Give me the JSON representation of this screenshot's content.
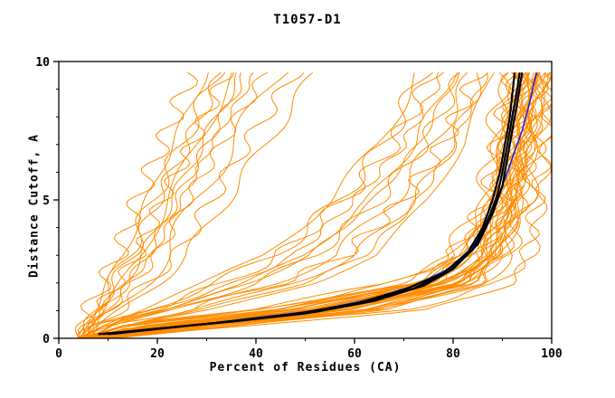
{
  "chart_data": {
    "type": "line",
    "title": "T1057-D1",
    "xlabel": "Percent of Residues (CA)",
    "ylabel": "Distance Cutoff, A",
    "xlim": [
      0,
      100
    ],
    "ylim": [
      0,
      10
    ],
    "xticks": [
      0,
      20,
      40,
      60,
      80,
      100
    ],
    "xminor": [
      10,
      30,
      50,
      70,
      90
    ],
    "yticks": [
      0,
      5,
      10
    ],
    "yminor": [
      1,
      2,
      3,
      4,
      6,
      7,
      8,
      9
    ],
    "grid": false,
    "legend": "none",
    "colors": {
      "ensemble": "#ff8c00",
      "best": "#000000",
      "reference": "#2020cc"
    },
    "y_knots": [
      0,
      0.5,
      1,
      2,
      3,
      5,
      7,
      9.6
    ],
    "orange_curves": [
      [
        5,
        18,
        45,
        74,
        82,
        88,
        90,
        92
      ],
      [
        6,
        22,
        50,
        78,
        85,
        90,
        92,
        94
      ],
      [
        4,
        15,
        40,
        70,
        80,
        87,
        89,
        91
      ],
      [
        7,
        25,
        55,
        80,
        86,
        91,
        93,
        95
      ],
      [
        5,
        20,
        48,
        76,
        84,
        89,
        91,
        93
      ],
      [
        8,
        28,
        58,
        82,
        88,
        92,
        94,
        96
      ],
      [
        6,
        17,
        42,
        72,
        81,
        88,
        90,
        92
      ],
      [
        5,
        23,
        52,
        79,
        86,
        90,
        92,
        95
      ],
      [
        7,
        30,
        60,
        83,
        89,
        93,
        95,
        97
      ],
      [
        4,
        13,
        38,
        68,
        79,
        86,
        88,
        90
      ],
      [
        6,
        26,
        56,
        81,
        87,
        91,
        93,
        96
      ],
      [
        9,
        32,
        62,
        84,
        90,
        94,
        96,
        98
      ],
      [
        5,
        19,
        46,
        75,
        83,
        89,
        91,
        94
      ],
      [
        7,
        24,
        53,
        79,
        86,
        91,
        93,
        95
      ],
      [
        6,
        21,
        49,
        77,
        85,
        90,
        92,
        94
      ],
      [
        8,
        29,
        59,
        83,
        88,
        92,
        94,
        97
      ],
      [
        5,
        16,
        43,
        73,
        82,
        88,
        90,
        93
      ],
      [
        6,
        27,
        57,
        82,
        87,
        92,
        94,
        96
      ],
      [
        10,
        35,
        65,
        85,
        90,
        94,
        96,
        98
      ],
      [
        4,
        14,
        39,
        69,
        80,
        87,
        89,
        92
      ],
      [
        7,
        31,
        61,
        84,
        89,
        93,
        95,
        97
      ],
      [
        5,
        22,
        51,
        78,
        85,
        90,
        93,
        95
      ],
      [
        8,
        33,
        63,
        85,
        90,
        94,
        96,
        98
      ],
      [
        6,
        18,
        44,
        74,
        83,
        89,
        91,
        93
      ],
      [
        9,
        34,
        64,
        86,
        91,
        95,
        97,
        99
      ],
      [
        5,
        20,
        47,
        76,
        84,
        90,
        92,
        94
      ],
      [
        7,
        28,
        58,
        82,
        88,
        93,
        95,
        97
      ],
      [
        6,
        25,
        54,
        80,
        87,
        92,
        94,
        96
      ],
      [
        8,
        30,
        60,
        83,
        89,
        93,
        95,
        98
      ],
      [
        11,
        38,
        68,
        86,
        91,
        95,
        97,
        99
      ],
      [
        6,
        24,
        55,
        81,
        88,
        93,
        96,
        100
      ],
      [
        5,
        21,
        50,
        78,
        86,
        92,
        95,
        99
      ],
      [
        8,
        40,
        75,
        92,
        96,
        98,
        99,
        100
      ],
      [
        7,
        35,
        70,
        90,
        95,
        97,
        99,
        100
      ],
      [
        5,
        12,
        25,
        45,
        58,
        70,
        78,
        85
      ],
      [
        6,
        15,
        30,
        52,
        64,
        75,
        82,
        88
      ],
      [
        4,
        10,
        20,
        38,
        50,
        63,
        72,
        80
      ],
      [
        5,
        13,
        27,
        48,
        60,
        72,
        80,
        86
      ],
      [
        6,
        11,
        22,
        40,
        52,
        65,
        74,
        82
      ],
      [
        4,
        9,
        18,
        34,
        45,
        58,
        68,
        76
      ],
      [
        5,
        14,
        28,
        50,
        62,
        73,
        80,
        87
      ],
      [
        6,
        10,
        19,
        36,
        48,
        60,
        70,
        78
      ],
      [
        4,
        8,
        16,
        30,
        42,
        55,
        65,
        73
      ],
      [
        5,
        12,
        24,
        44,
        56,
        68,
        76,
        84
      ],
      [
        6,
        9,
        17,
        32,
        44,
        57,
        66,
        74
      ],
      [
        4,
        11,
        21,
        39,
        51,
        64,
        73,
        81
      ],
      [
        4,
        6,
        9,
        14,
        18,
        24,
        30,
        38
      ],
      [
        5,
        7,
        10,
        15,
        20,
        26,
        33,
        42
      ],
      [
        4,
        6,
        8,
        12,
        16,
        21,
        27,
        34
      ],
      [
        5,
        8,
        11,
        17,
        22,
        28,
        35,
        45
      ],
      [
        4,
        5,
        7,
        10,
        13,
        18,
        23,
        30
      ],
      [
        5,
        7,
        9,
        13,
        17,
        23,
        29,
        37
      ],
      [
        4,
        6,
        8,
        11,
        15,
        20,
        26,
        33
      ],
      [
        6,
        8,
        12,
        18,
        24,
        31,
        38,
        48
      ],
      [
        4,
        5,
        6,
        9,
        12,
        16,
        21,
        27
      ],
      [
        5,
        7,
        10,
        14,
        19,
        25,
        31,
        40
      ],
      [
        4,
        6,
        9,
        13,
        17,
        22,
        28,
        36
      ],
      [
        6,
        9,
        13,
        20,
        26,
        34,
        42,
        52
      ],
      [
        4,
        5,
        7,
        11,
        14,
        19,
        25,
        32
      ]
    ],
    "black_curves": [
      [
        [
          9,
          0.15
        ],
        [
          20,
          0.35
        ],
        [
          35,
          0.6
        ],
        [
          50,
          0.9
        ],
        [
          62,
          1.3
        ],
        [
          72,
          1.8
        ],
        [
          79,
          2.4
        ],
        [
          84,
          3.2
        ],
        [
          87,
          4.2
        ],
        [
          89,
          5.2
        ],
        [
          90,
          6.0
        ],
        [
          91,
          7.0
        ],
        [
          92,
          8.0
        ],
        [
          93,
          9.0
        ],
        [
          93.5,
          9.6
        ]
      ],
      [
        [
          10,
          0.15
        ],
        [
          22,
          0.38
        ],
        [
          37,
          0.65
        ],
        [
          52,
          0.95
        ],
        [
          64,
          1.35
        ],
        [
          74,
          1.9
        ],
        [
          80,
          2.5
        ],
        [
          85,
          3.4
        ],
        [
          88,
          4.5
        ],
        [
          90,
          5.5
        ],
        [
          91,
          6.5
        ],
        [
          92,
          7.5
        ],
        [
          93,
          8.5
        ],
        [
          94,
          9.6
        ]
      ],
      [
        [
          8,
          0.15
        ],
        [
          19,
          0.33
        ],
        [
          33,
          0.58
        ],
        [
          48,
          0.88
        ],
        [
          60,
          1.25
        ],
        [
          70,
          1.75
        ],
        [
          78,
          2.35
        ],
        [
          83,
          3.1
        ],
        [
          86,
          4.0
        ],
        [
          88,
          5.0
        ],
        [
          89.5,
          6.0
        ],
        [
          90.5,
          7.0
        ],
        [
          91.5,
          8.0
        ],
        [
          92.5,
          9.6
        ]
      ]
    ],
    "blue_curve": [
      [
        11,
        0.15
      ],
      [
        24,
        0.4
      ],
      [
        38,
        0.7
      ],
      [
        52,
        1.0
      ],
      [
        63,
        1.4
      ],
      [
        72,
        1.9
      ],
      [
        79,
        2.5
      ],
      [
        84,
        3.3
      ],
      [
        87,
        4.3
      ],
      [
        90,
        5.5
      ],
      [
        92,
        6.5
      ],
      [
        94,
        7.5
      ],
      [
        95.5,
        8.5
      ],
      [
        96.5,
        9.3
      ],
      [
        97,
        9.6
      ]
    ]
  }
}
